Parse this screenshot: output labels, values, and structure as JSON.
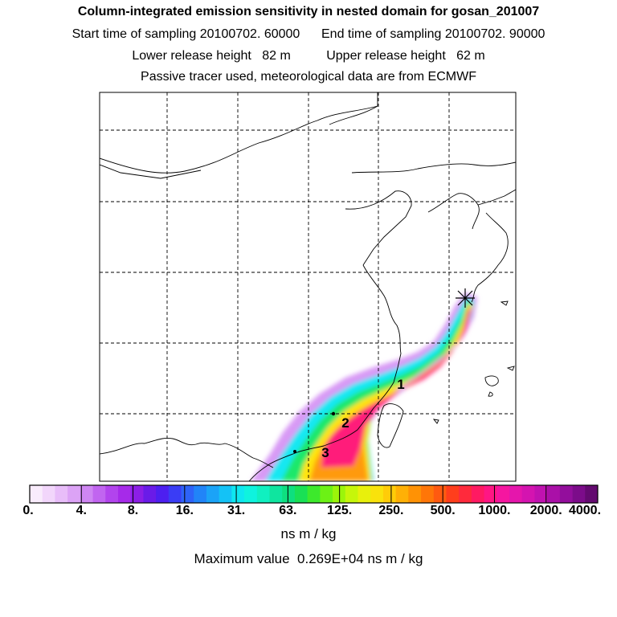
{
  "titles": {
    "line1": "Column-integrated emission sensitivity in nested domain for gosan_201007",
    "line2": "Start time of sampling 20100702. 60000      End time of sampling 20100702. 90000",
    "line3": "Lower release height   82 m          Upper release height   62 m",
    "line4": "Passive tracer used, meteorological data are from ECMWF"
  },
  "legend": {
    "tick_labels": [
      "0.",
      "4.",
      "8.",
      "16.",
      "31.",
      "63.",
      "125.",
      "250.",
      "500.",
      "1000.",
      "2000.",
      "4000."
    ],
    "colors": [
      "#f9ecfc",
      "#f2d6fb",
      "#e8bdf9",
      "#dca3f6",
      "#cf86f3",
      "#c165f0",
      "#b244ed",
      "#a62ae9",
      "#8c1ee6",
      "#6a1be8",
      "#4d1ff0",
      "#3a3df5",
      "#2e63f8",
      "#2184f8",
      "#1ba3f7",
      "#14c2f6",
      "#0ee7f0",
      "#0ff3de",
      "#10f0c0",
      "#0fe59f",
      "#0edf7f",
      "#19e055",
      "#3de92c",
      "#6cf115",
      "#9bf50a",
      "#c6f60a",
      "#e8f00c",
      "#f9e20c",
      "#ffcc08",
      "#ffb006",
      "#ff9205",
      "#ff7608",
      "#ff5a10",
      "#ff3e1c",
      "#ff2a3c",
      "#ff1a62",
      "#ff1684",
      "#f516a0",
      "#e516ac",
      "#d414b0",
      "#c012b0",
      "#aa10a8",
      "#930e9c",
      "#7c0c8a",
      "#640a70"
    ],
    "unit": "ns m / kg",
    "max_value_text": "Maximum value  0.269E+04 ns m / kg"
  },
  "map": {
    "receptor_marker": "receptor-star-icon",
    "trajectory_labels": [
      "1",
      "2",
      "3"
    ],
    "plume_colors": {
      "outer": "#d89af5",
      "cyan": "#17e8f2",
      "green": "#1ee86a",
      "yellow": "#ffe40a",
      "orange": "#ff9a10",
      "core": "#ff1a7a"
    }
  }
}
